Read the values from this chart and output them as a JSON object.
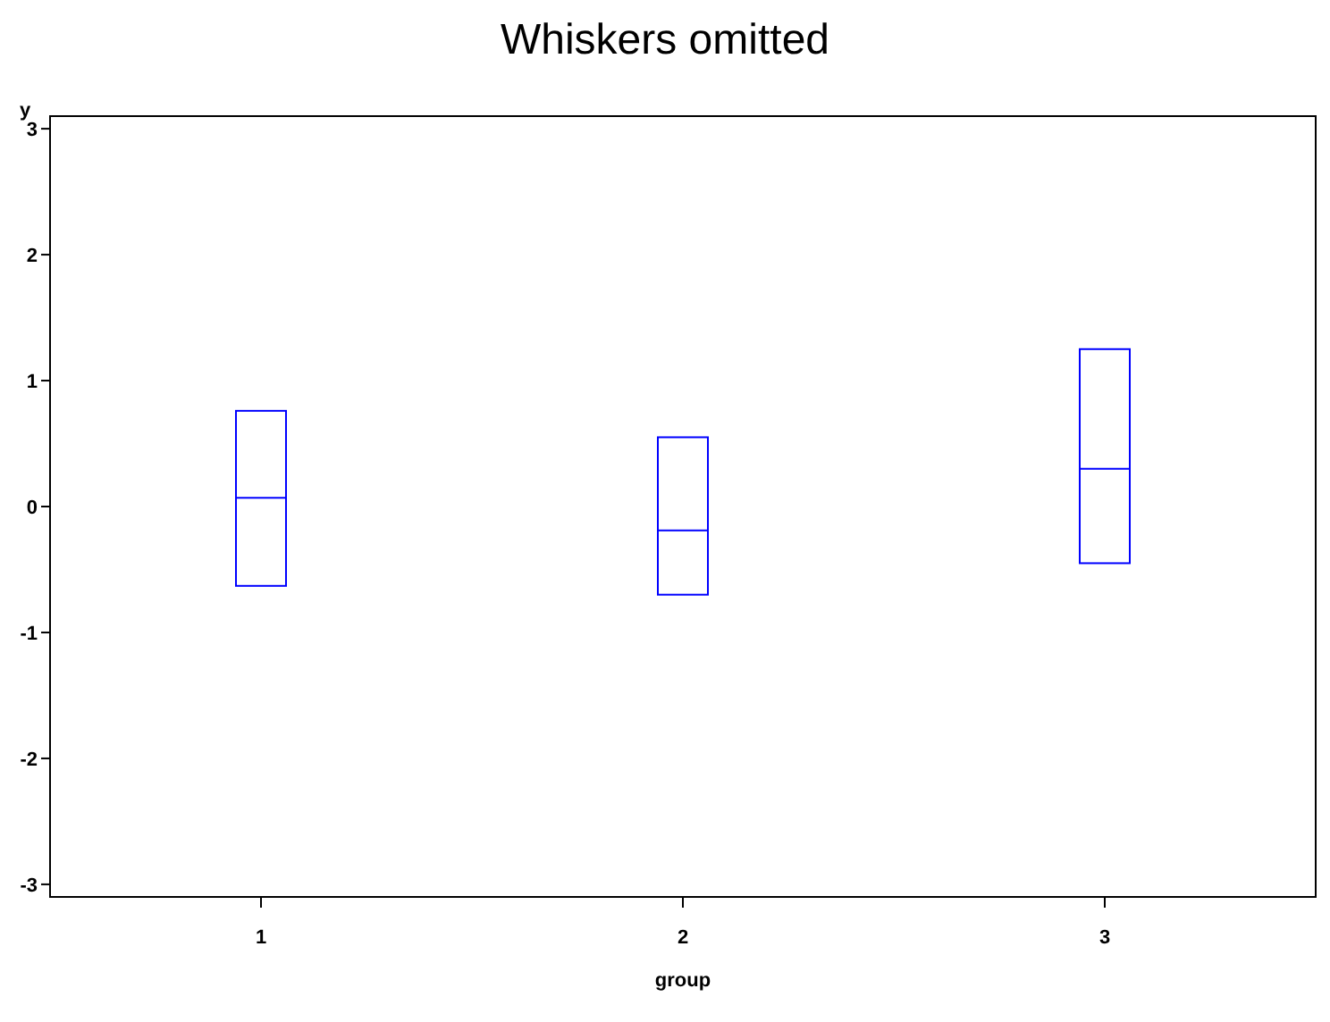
{
  "chart_data": {
    "type": "box",
    "title": "Whiskers omitted",
    "xlabel": "group",
    "ylabel": "y",
    "categories": [
      "1",
      "2",
      "3"
    ],
    "boxes": [
      {
        "q1": -0.63,
        "median": 0.07,
        "q3": 0.76
      },
      {
        "q1": -0.7,
        "median": -0.19,
        "q3": 0.55
      },
      {
        "q1": -0.45,
        "median": 0.3,
        "q3": 1.25
      }
    ],
    "color": "#0000ff",
    "ylim": [
      -3.1,
      3.1
    ],
    "yticks": [
      -3,
      -2,
      -1,
      0,
      1,
      2,
      3
    ]
  }
}
